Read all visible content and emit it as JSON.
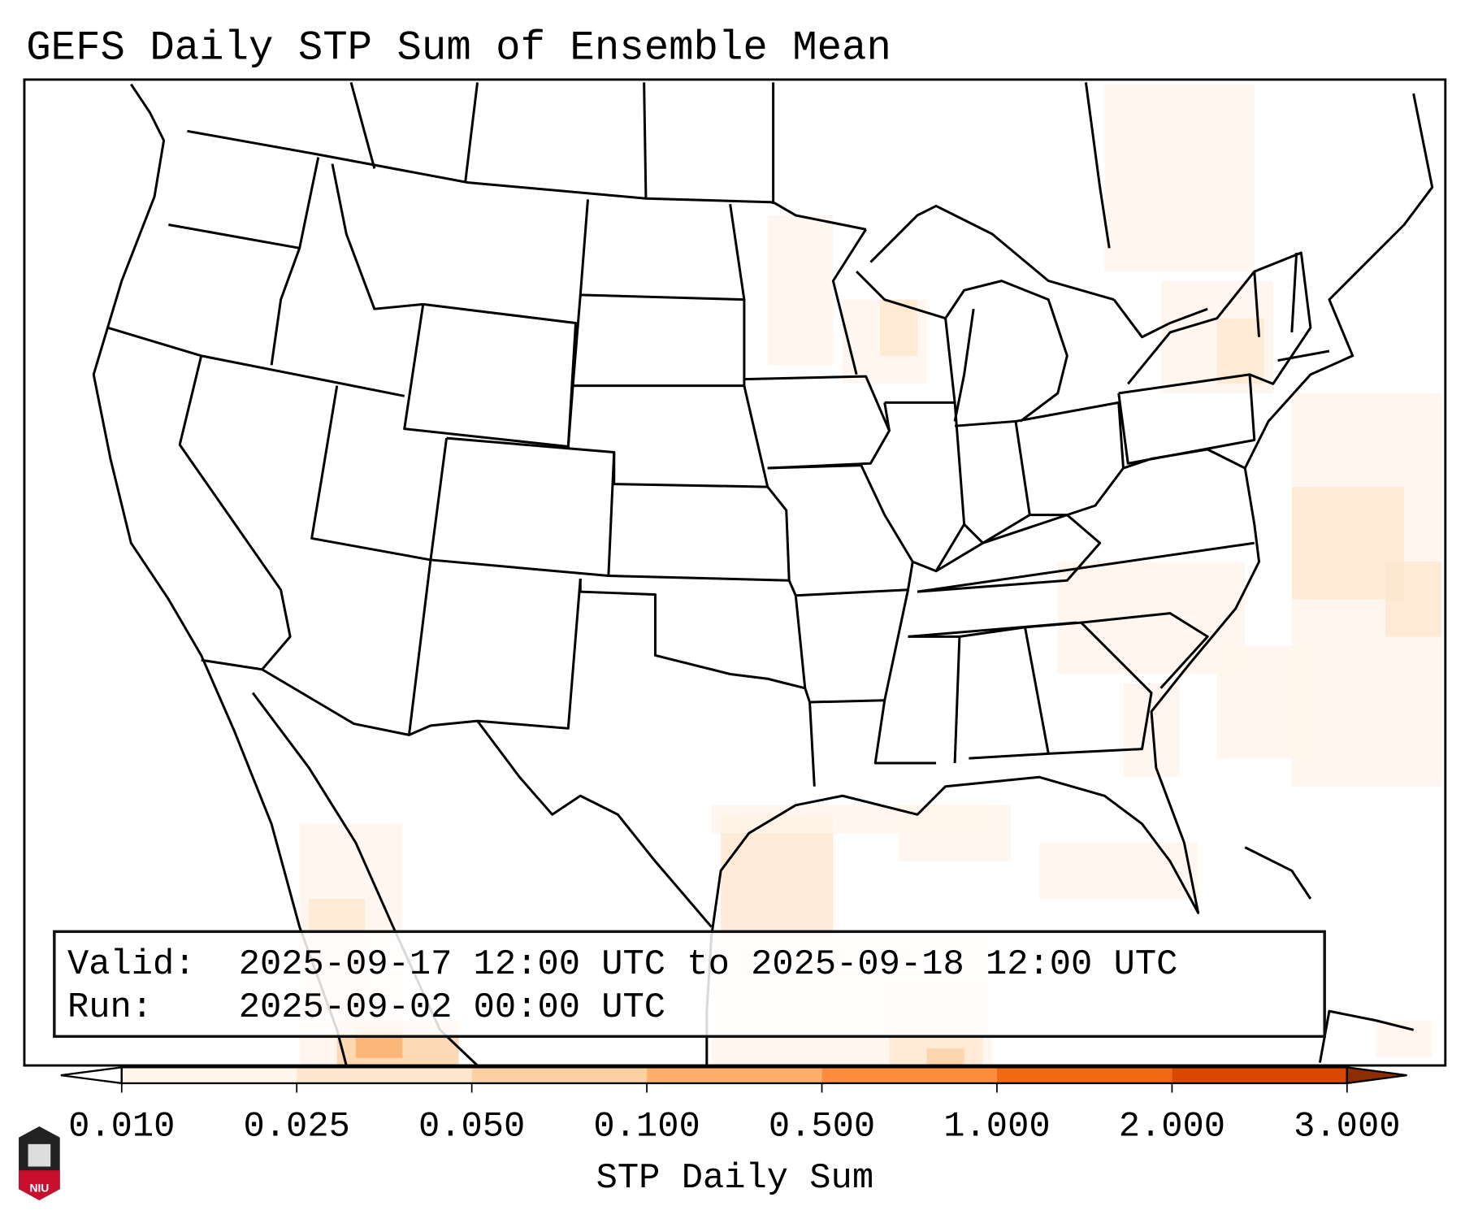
{
  "chart_data": {
    "type": "heatmap",
    "title": "GEFS Daily STP Sum of Ensemble Mean",
    "colorbar": {
      "label": "STP Daily Sum",
      "ticks": [
        "0.010",
        "0.025",
        "0.050",
        "0.100",
        "0.500",
        "1.000",
        "2.000",
        "3.000"
      ],
      "colors": [
        "#fff5eb",
        "#fee6ce",
        "#fdd0a2",
        "#fdae6b",
        "#fd8d3c",
        "#f16913",
        "#d94801"
      ],
      "under_color": "#ffffff",
      "over_color": "#8c2d04",
      "extend": "both"
    },
    "region": "Continental United States",
    "info": {
      "valid_label": "Valid:",
      "valid_value": "2025-09-17 12:00 UTC to 2025-09-18 12:00 UTC",
      "run_label": "Run:",
      "run_value": "2025-09-02 00:00 UTC"
    }
  },
  "logo": {
    "text": "NIU"
  }
}
